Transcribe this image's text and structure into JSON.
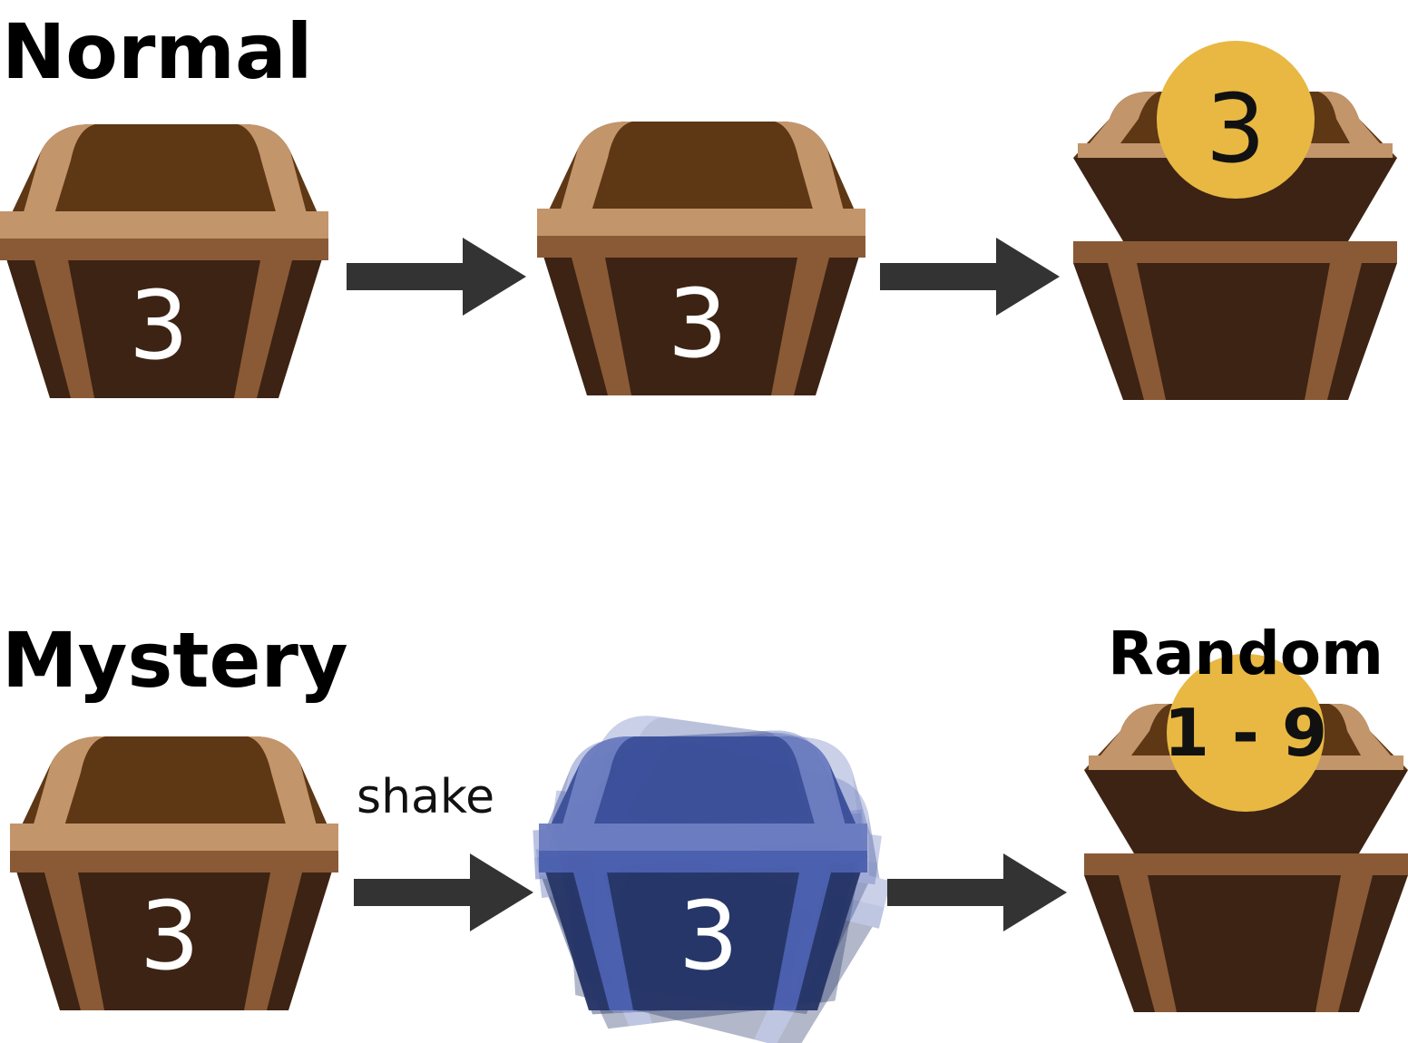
{
  "sections": {
    "normal": {
      "title": "Normal"
    },
    "mystery": {
      "title": "Mystery"
    }
  },
  "normal_row": {
    "chest1_number": "3",
    "chest2_number": "3",
    "coin_number": "3"
  },
  "mystery_row": {
    "chest1_number": "3",
    "shake_label": "shake",
    "chest2_number": "3",
    "random_label": "Random",
    "coin_range": "1 - 9"
  },
  "colors": {
    "lid_dark": "#5e3715",
    "strap_light": "#c3956a",
    "body_dark": "#3d2314",
    "strap_mid": "#8a5a36",
    "arrow": "#333333",
    "coin": "#e8b843",
    "mystery_blue": "#3b4f9a",
    "mystery_blue_dark": "#263567"
  }
}
